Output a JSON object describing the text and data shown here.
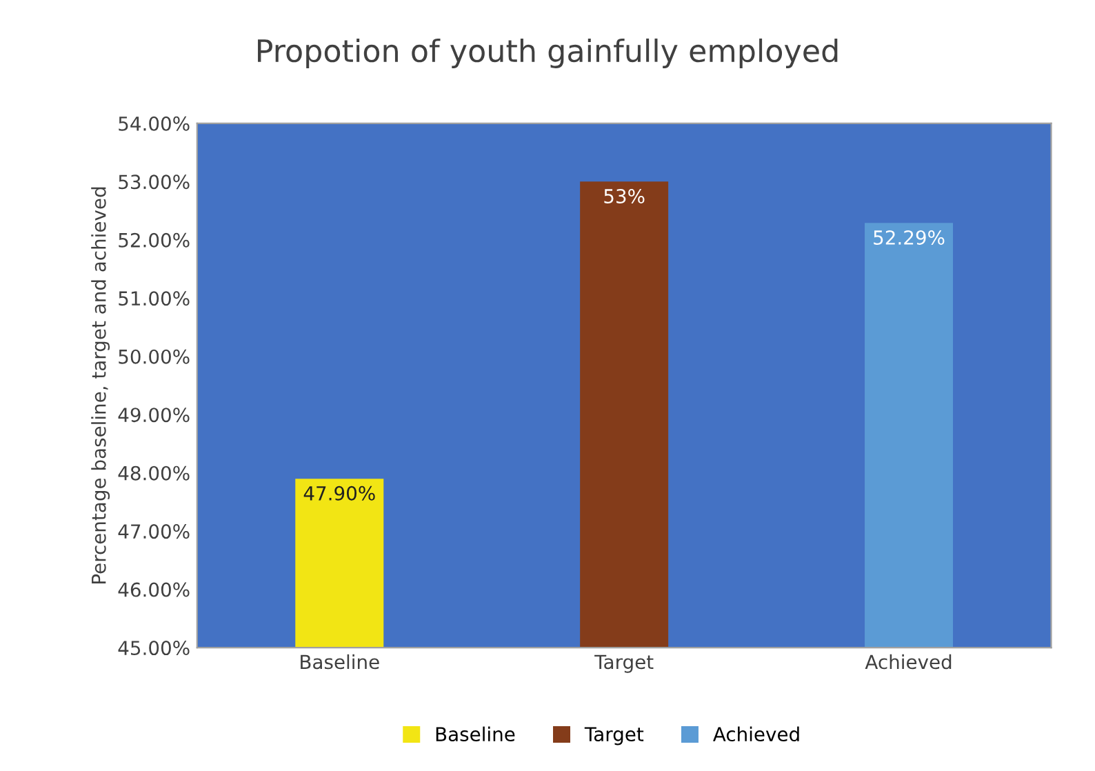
{
  "chart_data": {
    "type": "bar",
    "title": "Propotion of youth gainfully employed",
    "ylabel": "Percentage baseline, target and achieved",
    "categories": [
      "Baseline",
      "Target",
      "Achieved"
    ],
    "series": [
      {
        "name": "Baseline",
        "color": "#f2e514",
        "values": [
          47.9,
          null,
          null
        ],
        "value_labels": [
          "47.90%",
          null,
          null
        ]
      },
      {
        "name": "Target",
        "color": "#843c1a",
        "values": [
          null,
          53,
          null
        ],
        "value_labels": [
          null,
          "53%",
          null
        ]
      },
      {
        "name": "Achieved",
        "color": "#5b9bd5",
        "values": [
          null,
          null,
          52.29
        ],
        "value_labels": [
          null,
          null,
          "52.29%"
        ]
      }
    ],
    "ylim": [
      45,
      54
    ],
    "yticks": [
      {
        "value": 45,
        "label": "45.00%"
      },
      {
        "value": 46,
        "label": "46.00%"
      },
      {
        "value": 47,
        "label": "47.00%"
      },
      {
        "value": 48,
        "label": "48.00%"
      },
      {
        "value": 49,
        "label": "49.00%"
      },
      {
        "value": 50,
        "label": "50.00%"
      },
      {
        "value": 51,
        "label": "51.00%"
      },
      {
        "value": 52,
        "label": "52.00%"
      },
      {
        "value": 53,
        "label": "53.00%"
      },
      {
        "value": 54,
        "label": "54.00%"
      }
    ],
    "grid": false,
    "legend": "bottom"
  }
}
